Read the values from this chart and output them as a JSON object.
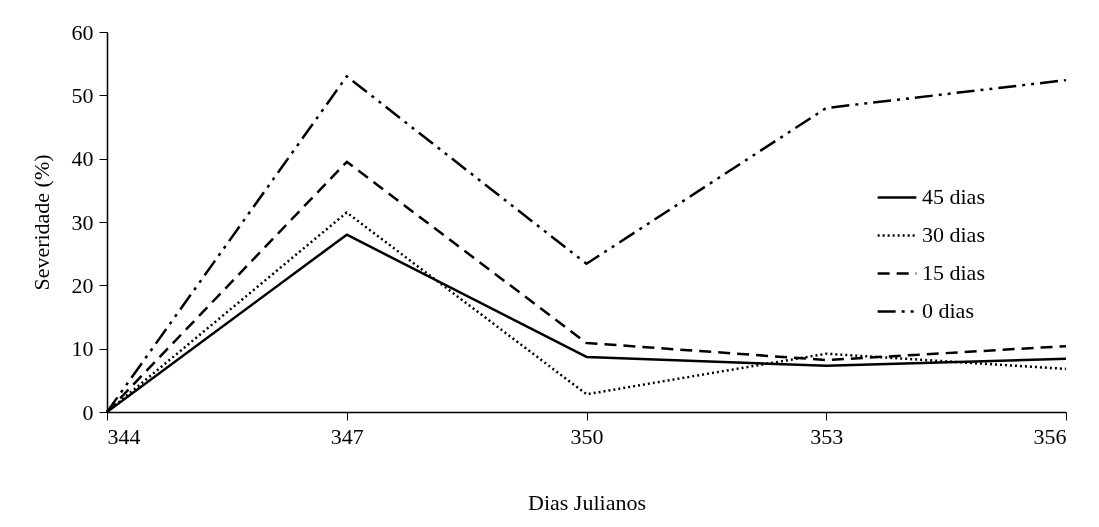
{
  "chart_data": {
    "type": "line",
    "xlabel": "Dias Julianos",
    "ylabel": "Severidade (%)",
    "x": [
      344,
      347,
      350,
      353,
      356
    ],
    "series": [
      {
        "name": "45 dias",
        "color": "#000000",
        "line_style": "solid",
        "values": [
          0,
          28,
          8.7,
          7.3,
          8.4
        ]
      },
      {
        "name": "30 dias",
        "color": "#000000",
        "line_style": "dotted",
        "values": [
          0,
          31.5,
          2.8,
          9.2,
          6.8
        ]
      },
      {
        "name": "15 dias",
        "color": "#000000",
        "line_style": "dashed",
        "values": [
          0,
          39.5,
          10.9,
          8.2,
          10.4
        ]
      },
      {
        "name": "0 dias",
        "color": "#000000",
        "line_style": "dashdot",
        "values": [
          0,
          53,
          23.4,
          48,
          52.4
        ]
      }
    ],
    "xlim": [
      344,
      356
    ],
    "xticks": [
      344,
      347,
      350,
      353,
      356
    ],
    "ylim": [
      0,
      60
    ],
    "yticks": [
      0,
      10,
      20,
      30,
      40,
      50,
      60
    ],
    "grid": false,
    "legend": "right",
    "marker": "none"
  }
}
